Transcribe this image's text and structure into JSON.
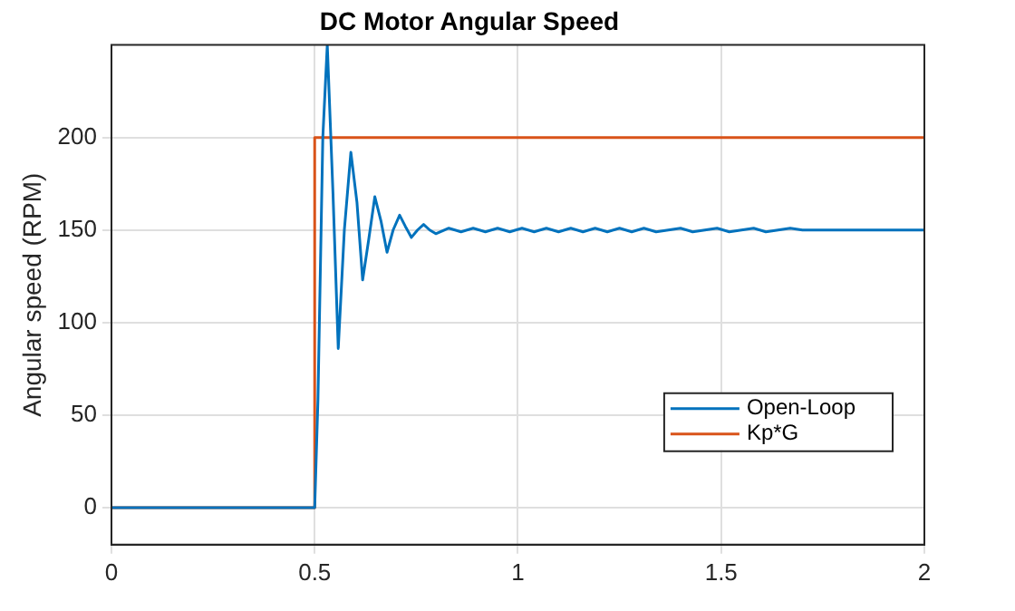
{
  "chart_data": {
    "type": "line",
    "title": "DC Motor Angular Speed",
    "ylabel": "Angular speed (RPM)",
    "xlim": [
      0,
      2
    ],
    "xticks": [
      0,
      0.5,
      1,
      1.5,
      2
    ],
    "ylim": [
      -20,
      250
    ],
    "yticks": [
      0,
      50,
      100,
      150,
      200
    ],
    "grid": true,
    "legend": "bottom right",
    "marker": "none",
    "line_style": "solid",
    "series": [
      {
        "name": "Open-Loop",
        "color": "#0072bd",
        "x": [
          0,
          0.5,
          0.508,
          0.52,
          0.531,
          0.545,
          0.558,
          0.573,
          0.589,
          0.604,
          0.618,
          0.633,
          0.648,
          0.663,
          0.678,
          0.693,
          0.709,
          0.723,
          0.738,
          0.753,
          0.768,
          0.783,
          0.798,
          0.83,
          0.86,
          0.89,
          0.92,
          0.95,
          0.98,
          1.01,
          1.04,
          1.07,
          1.1,
          1.13,
          1.16,
          1.19,
          1.22,
          1.25,
          1.28,
          1.31,
          1.34,
          1.37,
          1.4,
          1.43,
          1.46,
          1.49,
          1.52,
          1.55,
          1.58,
          1.61,
          1.64,
          1.67,
          1.7,
          2
        ],
        "values": [
          0,
          0,
          58,
          200,
          250,
          170,
          86,
          150,
          192,
          165,
          123,
          145,
          168,
          155,
          138,
          150,
          158,
          152,
          146,
          150,
          153,
          150,
          148,
          151,
          149,
          151,
          149,
          151,
          149,
          151,
          149,
          151,
          149,
          151,
          149,
          151,
          149,
          151,
          149,
          151,
          149,
          150,
          151,
          149,
          150,
          151,
          149,
          150,
          151,
          149,
          150,
          151,
          150,
          150
        ]
      },
      {
        "name": "Kp*G",
        "color": "#d95319",
        "x": [
          0,
          0.5,
          0.5,
          2
        ],
        "values": [
          0,
          0,
          200,
          200
        ]
      }
    ]
  }
}
